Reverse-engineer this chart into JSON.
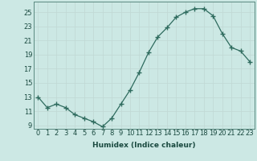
{
  "x": [
    0,
    1,
    2,
    3,
    4,
    5,
    6,
    7,
    8,
    9,
    10,
    11,
    12,
    13,
    14,
    15,
    16,
    17,
    18,
    19,
    20,
    21,
    22,
    23
  ],
  "y": [
    13,
    11.5,
    12,
    11.5,
    10.5,
    10,
    9.5,
    8.8,
    10,
    12,
    14,
    16.5,
    19.3,
    21.5,
    22.8,
    24.3,
    25.0,
    25.5,
    25.5,
    24.5,
    22.0,
    20.0,
    19.5,
    18.0
  ],
  "line_color": "#2e6b5e",
  "marker": "+",
  "marker_size": 4,
  "bg_color": "#cce8e4",
  "grid_color": "#c0d8d4",
  "xlabel": "Humidex (Indice chaleur)",
  "ylim": [
    8.5,
    26.5
  ],
  "xlim": [
    -0.5,
    23.5
  ],
  "yticks": [
    9,
    11,
    13,
    15,
    17,
    19,
    21,
    23,
    25
  ],
  "xticks": [
    0,
    1,
    2,
    3,
    4,
    5,
    6,
    7,
    8,
    9,
    10,
    11,
    12,
    13,
    14,
    15,
    16,
    17,
    18,
    19,
    20,
    21,
    22,
    23
  ],
  "xlabel_fontsize": 6.5,
  "tick_fontsize": 6.0,
  "lw": 0.9
}
